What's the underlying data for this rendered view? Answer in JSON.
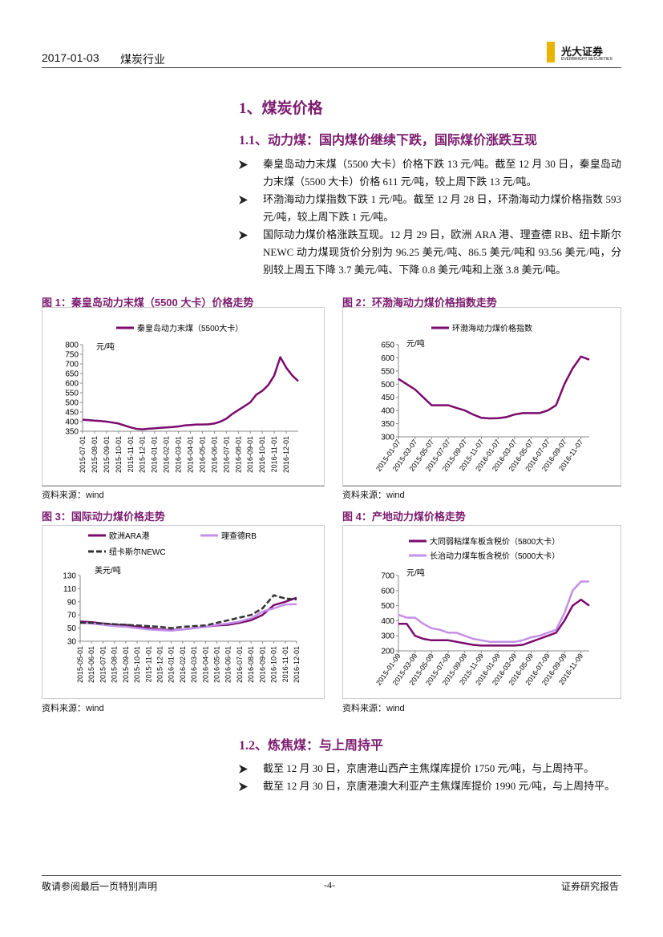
{
  "header": {
    "date": "2017-01-03",
    "industry": "煤炭行业",
    "logo": {
      "name": "光大证券",
      "sub": "EVERBRIGHT SECURITIES"
    }
  },
  "section_title": "1、煤炭价格",
  "subsections": [
    {
      "title": "1.1、动力煤：国内煤价继续下跌，国际煤价涨跌互现",
      "bullets": [
        "秦皇岛动力末煤（5500 大卡）价格下跌 13 元/吨。截至 12 月 30 日，秦皇岛动力末煤（5500 大卡）价格 611 元/吨，较上周下跌 13 元/吨。",
        "环渤海动力煤指数下跌 1 元/吨。截至 12 月 28 日，环渤海动力煤价格指数 593 元/吨，较上周下跌 1 元/吨。",
        "国际动力煤价格涨跌互现。12 月 29 日，欧洲 ARA 港、理查德 RB、纽卡斯尔 NEWC 动力煤现货价分别为 96.25 美元/吨、86.5 美元/吨和 93.56 美元/吨，分别较上周五下降 3.7 美元/吨、下降 0.8 美元/吨和上涨 3.8 美元/吨。"
      ]
    },
    {
      "title": "1.2、炼焦煤：与上周持平",
      "bullets": [
        "截至 12 月 30 日，京唐港山西产主焦煤库提价 1750 元/吨，与上周持平。",
        "截至 12 月 30 日，京唐港澳大利亚产主焦煤库提价 1990 元/吨，与上周持平。"
      ]
    }
  ],
  "figures": [
    {
      "caption": "图 1：秦皇岛动力末煤（5500 大卡）价格走势",
      "source": "资料来源：wind",
      "chart": {
        "type": "line",
        "unit": "元/吨",
        "categories": [
          "2015-07-01",
          null,
          "2015-08-01",
          null,
          "2015-09-01",
          null,
          "2015-10-01",
          null,
          "2015-11-01",
          null,
          "2015-12-01",
          null,
          "2016-01-01",
          null,
          "2016-02-01",
          null,
          "2016-03-01",
          null,
          "2016-04-01",
          null,
          "2016-05-01",
          null,
          "2016-06-01",
          null,
          "2016-07-01",
          null,
          "2016-08-01",
          null,
          "2016-09-01",
          null,
          "2016-10-01",
          null,
          "2016-11-01",
          null,
          "2016-12-01",
          null,
          null
        ],
        "ylim": [
          350,
          800
        ],
        "yticks": [
          350,
          400,
          450,
          500,
          550,
          600,
          650,
          700,
          750,
          800
        ],
        "series": [
          {
            "name": "秦皇岛动力末煤（5500大卡）",
            "color": "#7b0a6e",
            "values": [
              410,
              408,
              405,
              403,
              400,
              395,
              390,
              380,
              370,
              362,
              360,
              363,
              365,
              368,
              370,
              372,
              375,
              380,
              382,
              385,
              385,
              386,
              390,
              400,
              415,
              440,
              460,
              480,
              500,
              540,
              560,
              590,
              640,
              735,
              680,
              640,
              611
            ]
          }
        ]
      }
    },
    {
      "caption": "图 2：环渤海动力煤价格指数走势",
      "source": "资料来源：wind",
      "chart": {
        "type": "line",
        "unit": "元/吨",
        "categories": [
          "2015-01-07",
          null,
          "2015-03-07",
          null,
          "2015-05-07",
          null,
          "2015-07-07",
          null,
          "2015-09-07",
          null,
          "2015-11-07",
          null,
          "2016-01-07",
          null,
          "2016-03-07",
          null,
          "2016-05-07",
          null,
          "2016-07-07",
          null,
          "2016-09-07",
          null,
          "2016-11-07",
          null
        ],
        "ylim": [
          300,
          650
        ],
        "yticks": [
          300,
          350,
          400,
          450,
          500,
          550,
          600,
          650
        ],
        "series": [
          {
            "name": "环渤海动力煤价格指数",
            "color": "#7b0a6e",
            "values": [
              520,
              500,
              480,
              450,
              420,
              420,
              420,
              410,
              400,
              385,
              372,
              370,
              371,
              375,
              385,
              390,
              390,
              390,
              400,
              420,
              500,
              560,
              605,
              593
            ]
          }
        ]
      }
    },
    {
      "caption": "图 3：国际动力煤价格走势",
      "source": "资料来源：wind",
      "chart": {
        "type": "line",
        "unit": "美元/吨",
        "categories": [
          "2015-05-01",
          "2015-06-01",
          "2015-07-01",
          "2015-08-01",
          "2015-09-01",
          "2015-10-01",
          "2015-11-01",
          "2015-12-01",
          "2016-01-01",
          "2016-02-01",
          "2016-03-01",
          "2016-04-01",
          "2016-05-01",
          "2016-06-01",
          "2016-07-01",
          "2016-08-01",
          "2016-09-01",
          "2016-10-01",
          "2016-11-01",
          "2016-12-01"
        ],
        "ylim": [
          30,
          130
        ],
        "yticks": [
          30,
          50,
          70,
          90,
          110,
          130
        ],
        "series": [
          {
            "name": "欧洲ARA港",
            "color": "#7b0a6e",
            "values": [
              60,
              59,
              57,
              55,
              55,
              52,
              50,
              48,
              47,
              48,
              50,
              52,
              54,
              55,
              58,
              62,
              70,
              85,
              90,
              96.25
            ]
          },
          {
            "name": "理查德RB",
            "color": "#c38fe8",
            "values": [
              58,
              57,
              55,
              53,
              52,
              50,
              48,
              47,
              46,
              48,
              50,
              52,
              55,
              57,
              60,
              65,
              75,
              80,
              86,
              86.5
            ]
          },
          {
            "name": "纽卡斯尔NEWC",
            "color": "#333333",
            "dash": true,
            "values": [
              58,
              58,
              57,
              56,
              55,
              54,
              53,
              52,
              50,
              52,
              53,
              54,
              58,
              62,
              66,
              70,
              80,
              100,
              95,
              93.56
            ]
          }
        ]
      }
    },
    {
      "caption": "图 4：产地动力煤价格走势",
      "source": "资料来源：wind",
      "chart": {
        "type": "line",
        "unit": "元/吨",
        "categories": [
          "2015-01-09",
          null,
          "2015-03-09",
          null,
          "2015-05-09",
          null,
          "2015-07-09",
          null,
          "2015-09-09",
          null,
          "2015-11-09",
          null,
          "2016-01-09",
          null,
          "2016-03-09",
          null,
          "2016-05-09",
          null,
          "2016-07-09",
          null,
          "2016-09-09",
          null,
          "2016-11-09",
          null
        ],
        "ylim": [
          200,
          700
        ],
        "yticks": [
          200,
          300,
          400,
          500,
          600,
          700
        ],
        "series": [
          {
            "name": "大同弱粘煤车板含税价（5800大卡）",
            "color": "#7b0a6e",
            "values": [
              380,
              380,
              300,
              280,
              270,
              270,
              270,
              260,
              250,
              240,
              235,
              235,
              235,
              235,
              235,
              240,
              260,
              280,
              300,
              320,
              400,
              500,
              540,
              500
            ]
          },
          {
            "name": "长治动力煤车板含税价（5000大卡）",
            "color": "#c38fe8",
            "values": [
              440,
              420,
              420,
              380,
              350,
              340,
              320,
              320,
              300,
              280,
              270,
              260,
              260,
              260,
              260,
              270,
              290,
              300,
              320,
              340,
              450,
              600,
              660,
              660
            ]
          }
        ]
      }
    }
  ],
  "footer": {
    "left": "敬请参阅最后一页特别声明",
    "page": "-4-",
    "right": "证券研究报告"
  }
}
